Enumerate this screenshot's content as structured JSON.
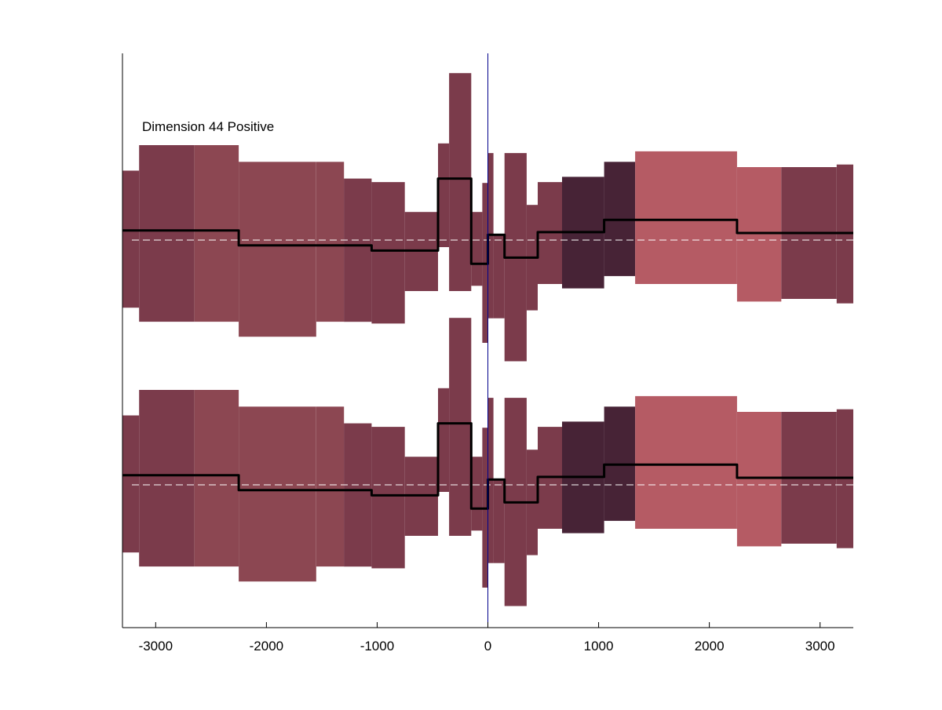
{
  "chart_data": {
    "type": "area",
    "title": "",
    "xlabel": "",
    "ylabel": "",
    "annotation": "Dimension 44 Positive",
    "xlim": [
      -3300,
      3300
    ],
    "x_ticks": [
      -3000,
      -2000,
      -1000,
      0,
      1000,
      2000,
      3000
    ],
    "x_tick_labels": [
      "-3000",
      "-2000",
      "-1000",
      "0",
      "1000",
      "2000",
      "3000"
    ],
    "grid": false,
    "vertical_marker_x": 0,
    "vertical_marker_color": "#00008b",
    "panels": [
      {
        "bins": [
          {
            "x0": -3300,
            "x1": -3150,
            "lo": -0.77,
            "hi": 0.79,
            "mean": 0.11,
            "color": "#7b3b4b"
          },
          {
            "x0": -3150,
            "x1": -2650,
            "lo": -0.93,
            "hi": 1.08,
            "mean": 0.11,
            "color": "#7b3b4b"
          },
          {
            "x0": -2650,
            "x1": -2250,
            "lo": -0.93,
            "hi": 1.08,
            "mean": 0.11,
            "color": "#8c4752"
          },
          {
            "x0": -2250,
            "x1": -1550,
            "lo": -1.1,
            "hi": 0.89,
            "mean": -0.06,
            "color": "#8c4752"
          },
          {
            "x0": -1550,
            "x1": -1300,
            "lo": -0.93,
            "hi": 0.89,
            "mean": -0.06,
            "color": "#8c4752"
          },
          {
            "x0": -1300,
            "x1": -1050,
            "lo": -0.93,
            "hi": 0.7,
            "mean": -0.06,
            "color": "#7b3b4b"
          },
          {
            "x0": -1050,
            "x1": -750,
            "lo": -0.95,
            "hi": 0.66,
            "mean": -0.12,
            "color": "#7b3b4b"
          },
          {
            "x0": -750,
            "x1": -450,
            "lo": -0.58,
            "hi": 0.32,
            "mean": -0.12,
            "color": "#7b3b4b"
          },
          {
            "x0": -450,
            "x1": -350,
            "lo": -0.08,
            "hi": 1.1,
            "mean": 0.7,
            "color": "#7b3b4b"
          },
          {
            "x0": -350,
            "x1": -150,
            "lo": -0.58,
            "hi": 1.9,
            "mean": 0.7,
            "color": "#7b3b4b"
          },
          {
            "x0": -150,
            "x1": -50,
            "lo": -0.52,
            "hi": 0.32,
            "mean": -0.27,
            "color": "#7b3b4b"
          },
          {
            "x0": -50,
            "x1": 0,
            "lo": -1.17,
            "hi": 0.65,
            "mean": -0.27,
            "color": "#7b3b4b"
          },
          {
            "x0": 0,
            "x1": 50,
            "lo": -0.89,
            "hi": 0.99,
            "mean": 0.06,
            "color": "#7b3b4b"
          },
          {
            "x0": 50,
            "x1": 150,
            "lo": -0.89,
            "hi": 0.06,
            "mean": 0.06,
            "color": "#7b3b4b"
          },
          {
            "x0": 150,
            "x1": 350,
            "lo": -1.38,
            "hi": 0.99,
            "mean": -0.2,
            "color": "#7b3b4b"
          },
          {
            "x0": 350,
            "x1": 450,
            "lo": -0.8,
            "hi": 0.4,
            "mean": -0.2,
            "color": "#7b3b4b"
          },
          {
            "x0": 450,
            "x1": 670,
            "lo": -0.5,
            "hi": 0.66,
            "mean": 0.09,
            "color": "#7b3b4b"
          },
          {
            "x0": 670,
            "x1": 1050,
            "lo": -0.55,
            "hi": 0.72,
            "mean": 0.09,
            "color": "#472336"
          },
          {
            "x0": 1050,
            "x1": 1330,
            "lo": -0.41,
            "hi": 0.89,
            "mean": 0.23,
            "color": "#472336"
          },
          {
            "x0": 1330,
            "x1": 2250,
            "lo": -0.5,
            "hi": 1.01,
            "mean": 0.23,
            "color": "#b55b64"
          },
          {
            "x0": 2250,
            "x1": 2650,
            "lo": -0.7,
            "hi": 0.83,
            "mean": 0.08,
            "color": "#b55b64"
          },
          {
            "x0": 2650,
            "x1": 3150,
            "lo": -0.67,
            "hi": 0.83,
            "mean": 0.08,
            "color": "#7b3b4b"
          },
          {
            "x0": 3150,
            "x1": 3300,
            "lo": -0.72,
            "hi": 0.86,
            "mean": 0.08,
            "color": "#7b3b4b"
          }
        ]
      },
      {
        "bins": [
          {
            "x0": -3300,
            "x1": -3150,
            "lo": -0.77,
            "hi": 0.79,
            "mean": 0.11,
            "color": "#7b3b4b"
          },
          {
            "x0": -3150,
            "x1": -2650,
            "lo": -0.93,
            "hi": 1.08,
            "mean": 0.11,
            "color": "#7b3b4b"
          },
          {
            "x0": -2650,
            "x1": -2250,
            "lo": -0.93,
            "hi": 1.08,
            "mean": 0.11,
            "color": "#8c4752"
          },
          {
            "x0": -2250,
            "x1": -1550,
            "lo": -1.1,
            "hi": 0.89,
            "mean": -0.06,
            "color": "#8c4752"
          },
          {
            "x0": -1550,
            "x1": -1300,
            "lo": -0.93,
            "hi": 0.89,
            "mean": -0.06,
            "color": "#8c4752"
          },
          {
            "x0": -1300,
            "x1": -1050,
            "lo": -0.93,
            "hi": 0.7,
            "mean": -0.06,
            "color": "#7b3b4b"
          },
          {
            "x0": -1050,
            "x1": -750,
            "lo": -0.95,
            "hi": 0.66,
            "mean": -0.12,
            "color": "#7b3b4b"
          },
          {
            "x0": -750,
            "x1": -450,
            "lo": -0.58,
            "hi": 0.32,
            "mean": -0.12,
            "color": "#7b3b4b"
          },
          {
            "x0": -450,
            "x1": -350,
            "lo": -0.08,
            "hi": 1.1,
            "mean": 0.7,
            "color": "#7b3b4b"
          },
          {
            "x0": -350,
            "x1": -150,
            "lo": -0.58,
            "hi": 1.9,
            "mean": 0.7,
            "color": "#7b3b4b"
          },
          {
            "x0": -150,
            "x1": -50,
            "lo": -0.52,
            "hi": 0.32,
            "mean": -0.27,
            "color": "#7b3b4b"
          },
          {
            "x0": -50,
            "x1": 0,
            "lo": -1.17,
            "hi": 0.65,
            "mean": -0.27,
            "color": "#7b3b4b"
          },
          {
            "x0": 0,
            "x1": 50,
            "lo": -0.89,
            "hi": 0.99,
            "mean": 0.06,
            "color": "#7b3b4b"
          },
          {
            "x0": 50,
            "x1": 150,
            "lo": -0.89,
            "hi": 0.06,
            "mean": 0.06,
            "color": "#7b3b4b"
          },
          {
            "x0": 150,
            "x1": 350,
            "lo": -1.38,
            "hi": 0.99,
            "mean": -0.2,
            "color": "#7b3b4b"
          },
          {
            "x0": 350,
            "x1": 450,
            "lo": -0.8,
            "hi": 0.4,
            "mean": -0.2,
            "color": "#7b3b4b"
          },
          {
            "x0": 450,
            "x1": 670,
            "lo": -0.5,
            "hi": 0.66,
            "mean": 0.09,
            "color": "#7b3b4b"
          },
          {
            "x0": 670,
            "x1": 1050,
            "lo": -0.55,
            "hi": 0.72,
            "mean": 0.09,
            "color": "#472336"
          },
          {
            "x0": 1050,
            "x1": 1330,
            "lo": -0.41,
            "hi": 0.89,
            "mean": 0.23,
            "color": "#472336"
          },
          {
            "x0": 1330,
            "x1": 2250,
            "lo": -0.5,
            "hi": 1.01,
            "mean": 0.23,
            "color": "#b55b64"
          },
          {
            "x0": 2250,
            "x1": 2650,
            "lo": -0.7,
            "hi": 0.83,
            "mean": 0.08,
            "color": "#b55b64"
          },
          {
            "x0": 2650,
            "x1": 3150,
            "lo": -0.67,
            "hi": 0.83,
            "mean": 0.08,
            "color": "#7b3b4b"
          },
          {
            "x0": 3150,
            "x1": 3300,
            "lo": -0.72,
            "hi": 0.86,
            "mean": 0.08,
            "color": "#7b3b4b"
          }
        ]
      }
    ]
  },
  "colors": {
    "mean_line": "#000000",
    "baseline": "#ffffff",
    "axis": "#000000"
  }
}
